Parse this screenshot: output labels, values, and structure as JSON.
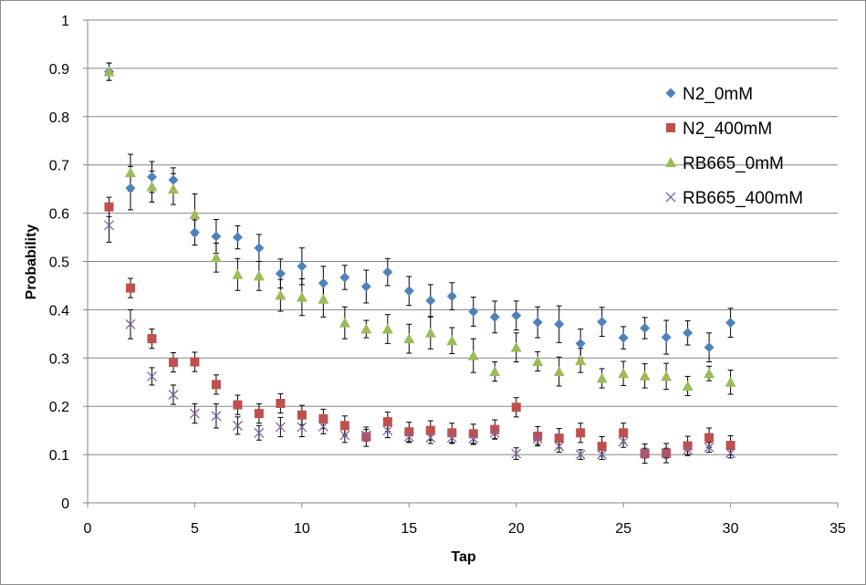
{
  "chart_data": {
    "type": "scatter",
    "xlabel": "Tap",
    "ylabel": "Probability",
    "xlim": [
      0,
      35
    ],
    "ylim": [
      0,
      1
    ],
    "xticks": [
      0,
      5,
      10,
      15,
      20,
      25,
      30,
      35
    ],
    "yticks": [
      0,
      0.1,
      0.2,
      0.3,
      0.4,
      0.5,
      0.6,
      0.7,
      0.8,
      0.9,
      1
    ],
    "grid": "horizontal",
    "legend_position": "right",
    "x": [
      1,
      2,
      3,
      4,
      5,
      6,
      7,
      8,
      9,
      10,
      11,
      12,
      13,
      14,
      15,
      16,
      17,
      18,
      19,
      20,
      21,
      22,
      23,
      24,
      25,
      26,
      27,
      28,
      29,
      30
    ],
    "series": [
      {
        "name": "N2_0mM",
        "marker": "diamond",
        "color": "#4F81BD",
        "values": [
          0.893,
          0.652,
          0.675,
          0.669,
          0.56,
          0.552,
          0.55,
          0.528,
          0.475,
          0.49,
          0.455,
          0.467,
          0.448,
          0.478,
          0.439,
          0.419,
          0.428,
          0.396,
          0.385,
          0.388,
          0.374,
          0.37,
          0.33,
          0.375,
          0.342,
          0.362,
          0.343,
          0.352,
          0.322,
          0.373
        ],
        "errors": [
          0.018,
          0.045,
          0.032,
          0.025,
          0.026,
          0.035,
          0.024,
          0.028,
          0.03,
          0.038,
          0.035,
          0.025,
          0.034,
          0.028,
          0.03,
          0.033,
          0.028,
          0.03,
          0.033,
          0.03,
          0.032,
          0.038,
          0.03,
          0.03,
          0.023,
          0.022,
          0.035,
          0.025,
          0.03,
          0.03
        ]
      },
      {
        "name": "N2_400mM",
        "marker": "square",
        "color": "#C0504D",
        "values": [
          0.613,
          0.445,
          0.34,
          0.291,
          0.292,
          0.245,
          0.203,
          0.185,
          0.206,
          0.182,
          0.174,
          0.16,
          0.137,
          0.168,
          0.147,
          0.15,
          0.145,
          0.143,
          0.152,
          0.198,
          0.138,
          0.134,
          0.145,
          0.117,
          0.145,
          0.102,
          0.103,
          0.118,
          0.135,
          0.119
        ]
      },
      {
        "name": "RB665_0mM",
        "marker": "triangle",
        "color": "#9BBB59",
        "values": [
          0.893,
          0.684,
          0.655,
          0.65,
          0.597,
          0.508,
          0.473,
          0.47,
          0.43,
          0.426,
          0.422,
          0.373,
          0.36,
          0.36,
          0.34,
          0.352,
          0.336,
          0.305,
          0.272,
          0.322,
          0.293,
          0.272,
          0.295,
          0.258,
          0.268,
          0.263,
          0.262,
          0.242,
          0.268,
          0.25
        ],
        "errors": [
          0.018,
          0.038,
          0.032,
          0.032,
          0.043,
          0.03,
          0.033,
          0.03,
          0.033,
          0.038,
          0.037,
          0.033,
          0.018,
          0.03,
          0.03,
          0.033,
          0.027,
          0.035,
          0.02,
          0.03,
          0.02,
          0.03,
          0.025,
          0.02,
          0.025,
          0.025,
          0.027,
          0.02,
          0.015,
          0.025
        ]
      },
      {
        "name": "RB665_400mM",
        "marker": "x",
        "color": "#8064A2",
        "values": [
          0.575,
          0.37,
          0.262,
          0.224,
          0.185,
          0.18,
          0.16,
          0.145,
          0.157,
          0.157,
          0.158,
          0.14,
          0.14,
          0.15,
          0.137,
          0.135,
          0.135,
          0.133,
          0.145,
          0.102,
          0.133,
          0.117,
          0.1,
          0.1,
          0.127,
          0.103,
          0.103,
          0.11,
          0.115,
          0.103
        ],
        "errors": [
          0.035,
          0.03,
          0.018,
          0.02,
          0.02,
          0.025,
          0.018,
          0.015,
          0.02,
          0.02,
          0.015,
          0.015,
          0.012,
          0.015,
          0.012,
          0.012,
          0.012,
          0.012,
          0.012,
          0.012,
          0.012,
          0.012,
          0.01,
          0.01,
          0.012,
          0.01,
          0.01,
          0.01,
          0.01,
          0.01
        ]
      }
    ]
  }
}
